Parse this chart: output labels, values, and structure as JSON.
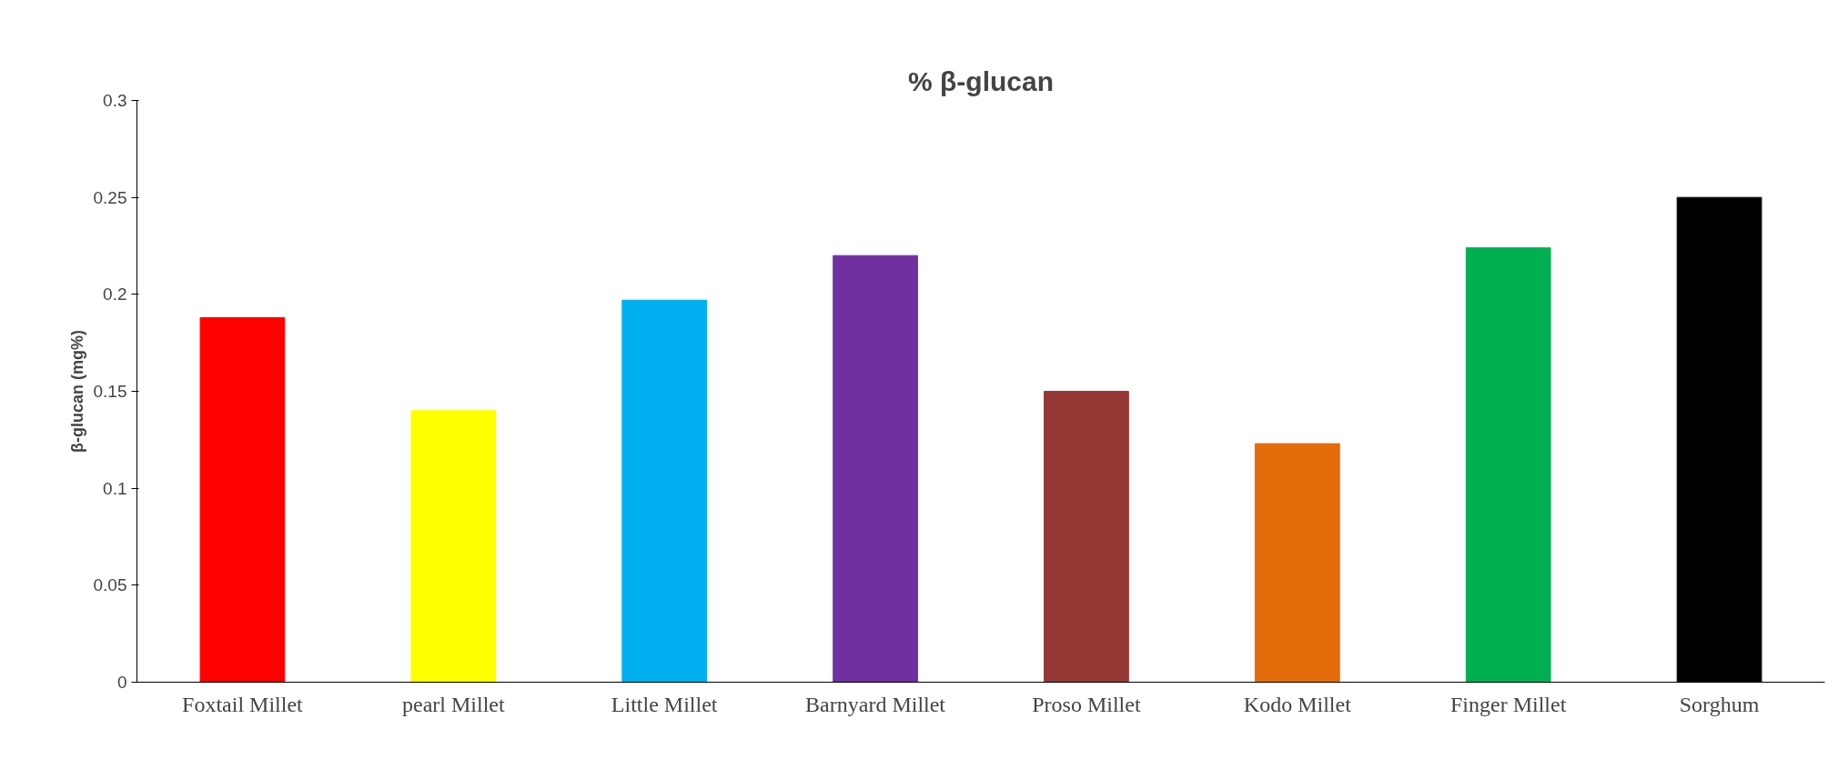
{
  "chart_data": {
    "type": "bar",
    "title": "% β-glucan",
    "ylabel": "β-glucan (mg%)",
    "categories": [
      "Foxtail Millet",
      "pearl Millet",
      "Little Millet",
      "Barnyard Millet",
      "Proso Millet",
      "Kodo Millet",
      "Finger Millet",
      "Sorghum"
    ],
    "values": [
      0.188,
      0.14,
      0.197,
      0.22,
      0.15,
      0.123,
      0.224,
      0.25
    ],
    "colors": [
      "#ff0000",
      "#ffff00",
      "#00b0f0",
      "#7030a0",
      "#953735",
      "#e46c0a",
      "#00b050",
      "#000000"
    ],
    "ylim": [
      0,
      0.3
    ],
    "yticks": [
      0,
      0.05,
      0.1,
      0.15,
      0.2,
      0.25,
      0.3
    ],
    "grid": false
  }
}
